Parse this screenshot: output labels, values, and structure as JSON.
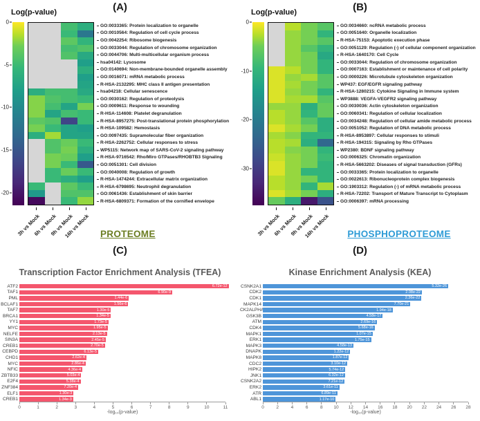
{
  "chart_data": [
    {
      "type": "heatmap",
      "panel_tag": "(A)",
      "title": "Log(p-value)",
      "footer": "PROTEOME",
      "footer_color": "#6b7d22",
      "missing_color": "#d6d6d6",
      "colorbar": {
        "ticks": [
          0,
          -5,
          -10,
          -15,
          -20
        ],
        "vmin": -21.5,
        "vmax": 0
      },
      "columns": [
        "3h vs Mock",
        "6h vs Mock",
        "9h vs Mock",
        "16h vs Mock"
      ],
      "rows": [
        {
          "label": "GO:0033365: Protein localization to organelle",
          "values": [
            null,
            null,
            -6.5,
            -8
          ]
        },
        {
          "label": "GO:0010564: Regulation of cell cycle process",
          "values": [
            null,
            null,
            -7,
            -13
          ]
        },
        {
          "label": "GO:0042254: Ribosome biogenesis",
          "values": [
            null,
            null,
            -5.5,
            -7.5
          ]
        },
        {
          "label": "GO:0033044: Regulation of chromosome organization",
          "values": [
            null,
            null,
            -6.5,
            -6
          ]
        },
        {
          "label": "GO:0044706: Multi-multicellular organism process",
          "values": [
            null,
            null,
            -6,
            -8.5
          ]
        },
        {
          "label": "hsa04142: Lysosome",
          "values": [
            null,
            null,
            null,
            -9.5
          ]
        },
        {
          "label": "GO:0140694: Non-membrane-bounded organelle assembly",
          "values": [
            null,
            null,
            null,
            -8
          ]
        },
        {
          "label": "GO:0016071: mRNA metabolic process",
          "values": [
            null,
            null,
            null,
            -9.5
          ]
        },
        {
          "label": "R-HSA-2132295: MHC class II antigen presentation",
          "values": [
            null,
            null,
            null,
            -9
          ]
        },
        {
          "label": "hsa04218: Cellular senescence",
          "values": [
            -8,
            -6.5,
            -6.5,
            -8.5
          ]
        },
        {
          "label": "GO:0030162: Regulation of proteolysis",
          "values": [
            -4,
            -6,
            -6.5,
            -7
          ]
        },
        {
          "label": "GO:0009611: Response to wounding",
          "values": [
            -4,
            -6.5,
            -9,
            -4.5
          ]
        },
        {
          "label": "R-HSA-114608: Platelet degranulation",
          "values": [
            -4,
            -9,
            -6.5,
            -7
          ]
        },
        {
          "label": "R-HSA-8957275: Post-translational protein phosphorylation",
          "values": [
            -5.5,
            -6,
            -17,
            -7
          ]
        },
        {
          "label": "R-HSA-109582: Hemostasis",
          "values": [
            -4.5,
            -7,
            -9,
            -9.5
          ]
        },
        {
          "label": "GO:0097435: Supramolecular fiber organization",
          "values": [
            -8,
            -3,
            -9,
            -9
          ]
        },
        {
          "label": "R-HSA-2262752: Cellular responses to stress",
          "values": [
            null,
            -6,
            -5,
            -7
          ]
        },
        {
          "label": "WP5115: Network map of SARS-CoV-2 signaling pathway",
          "values": [
            null,
            -6,
            -4.5,
            -8
          ]
        },
        {
          "label": "R-HSA-9716542: Rho/Miro GTPases/RHOBTB3 Signaling",
          "values": [
            null,
            -4.5,
            -5,
            -9.5
          ]
        },
        {
          "label": "GO:0051301: Cell division",
          "values": [
            null,
            -4.5,
            -7,
            -15.5
          ]
        },
        {
          "label": "GO:0040008: Regulation of growth",
          "values": [
            null,
            -7,
            -5,
            -7
          ]
        },
        {
          "label": "R-HSA-1474244: Extracellular matrix organization",
          "values": [
            null,
            -7,
            -8,
            -9.5
          ]
        },
        {
          "label": "R-HSA-6798695: Neutrophil degranulation",
          "values": [
            -7,
            null,
            -5.5,
            -7
          ]
        },
        {
          "label": "GO:0061436: Establishment of skin barrier",
          "values": [
            -10,
            null,
            -6,
            -6
          ]
        },
        {
          "label": "R-HSA-6809371: Formation of the cornified envelope",
          "values": [
            -21,
            null,
            -7,
            -3.5
          ]
        }
      ]
    },
    {
      "type": "heatmap",
      "panel_tag": "(B)",
      "title": "Log(p-value)",
      "footer": "PHOSPHOPROTEOME",
      "footer_color": "#2e9bd6",
      "missing_color": "#d6d6d6",
      "colorbar": {
        "ticks": [
          0,
          -10,
          -20,
          -30
        ],
        "vmin": -37.5,
        "vmax": 0
      },
      "columns": [
        "3h vs Mock",
        "6h vs Mock",
        "9h vs Mock",
        "16h vs Mock"
      ],
      "rows": [
        {
          "label": "GO:0034660: ncRNA metabolic process",
          "values": [
            null,
            -4,
            -8,
            -10
          ]
        },
        {
          "label": "GO:0051640: Organelle localization",
          "values": [
            null,
            -6,
            -8,
            -13
          ]
        },
        {
          "label": "R-HSA-75153: Apoptotic execution phase",
          "values": [
            null,
            -6,
            -8,
            -10
          ]
        },
        {
          "label": "GO:0051129: Regulation (-) of cellular component organization",
          "values": [
            null,
            -6,
            -10,
            -13
          ]
        },
        {
          "label": "R-HSA-1640170: Cell Cycle",
          "values": [
            null,
            -6,
            -8,
            -15
          ]
        },
        {
          "label": "GO:0033044: Regulation of chromosome organization",
          "values": [
            null,
            -6,
            -8,
            -13
          ]
        },
        {
          "label": "GO:0007163: Establishment or maintenance of cell polarity",
          "values": [
            -2,
            -4,
            -8,
            -13
          ]
        },
        {
          "label": "GO:0000226: Microtubule cytoskeleton organization",
          "values": [
            -2,
            -6,
            -5,
            -10
          ]
        },
        {
          "label": "WP437: EGF/EGFR signaling pathway",
          "values": [
            -2,
            -5,
            -8,
            -10
          ]
        },
        {
          "label": "R-HSA-1280215: Cytokine Signaling in Immune system",
          "values": [
            -2,
            -6,
            -8,
            -13
          ]
        },
        {
          "label": "WP3888: VEGFA-VEGFR2 signaling pathway",
          "values": [
            -2,
            -5,
            -5,
            -10
          ]
        },
        {
          "label": "GO:0030036: Actin cytoskeleton organization",
          "values": [
            -6,
            -6,
            -14,
            -9
          ]
        },
        {
          "label": "GO:0060341: Regulation of cellular localization",
          "values": [
            -4,
            -6,
            -13,
            -9
          ]
        },
        {
          "label": "GO:0034248: Regulation of cellular amide metabolic process",
          "values": [
            -4,
            -6,
            -10,
            -14
          ]
        },
        {
          "label": "GO:0051052: Regulation of DNA metabolic process",
          "values": [
            -2,
            -5,
            -8,
            -14
          ]
        },
        {
          "label": "R-HSA-8953897: Cellular responses to stimuli",
          "values": [
            -5,
            -7,
            -13,
            -13
          ]
        },
        {
          "label": "R-HSA-194315: Signaling by Rho GTPases",
          "values": [
            -4,
            -5,
            -14,
            -25
          ]
        },
        {
          "label": "WP2380: BDNF signaling pathway",
          "values": [
            -4,
            -7,
            -8,
            -13
          ]
        },
        {
          "label": "GO:0006325: Chromatin organization",
          "values": [
            -3,
            -6,
            -8,
            -12
          ]
        },
        {
          "label": "R-HSA-5663202: Diseases of signal transduction (GFRs)",
          "values": [
            -2,
            -6,
            -8,
            -13
          ]
        },
        {
          "label": "GO:0033365: Protein localization to organelle",
          "values": [
            -2,
            -6,
            -13,
            -13
          ]
        },
        {
          "label": "GO:0022613: Ribonucleoprotein complex biogenesis",
          "values": [
            -4,
            -6,
            -8,
            -13
          ]
        },
        {
          "label": "GO:1903312: Regulation (-) of mRNA metabolic process",
          "values": [
            -4,
            -6,
            -13,
            -5
          ]
        },
        {
          "label": "R-HSA-72202: Transport of Mature Transcript to Cytoplasm",
          "values": [
            -2,
            -5,
            -8,
            -14
          ]
        },
        {
          "label": "GO:0006397: mRNA processing",
          "values": [
            -9,
            -14,
            -35,
            -28
          ]
        }
      ]
    },
    {
      "type": "bar",
      "panel_tag": "(C)",
      "title": "Transcription Factor Enrichment Analysis (TFEA)",
      "xlabel": "-log₁₀(p-value)",
      "bar_color": "#f4566d",
      "xmax": 11,
      "xtick_step": 1,
      "xticks": [
        0,
        1,
        2,
        3,
        4,
        5,
        6,
        7,
        8,
        9,
        10,
        11
      ],
      "bars": [
        {
          "label": "ATF2",
          "p": "6.72e-12",
          "neg_log10": 11.17
        },
        {
          "label": "TAF1",
          "p": "6.90e-9",
          "neg_log10": 8.16
        },
        {
          "label": "PML",
          "p": "1.44e-6",
          "neg_log10": 5.84
        },
        {
          "label": "BCLAF1",
          "p": "1.56e-6",
          "neg_log10": 5.81
        },
        {
          "label": "TAF7",
          "p": "1.30e-5",
          "neg_log10": 4.89
        },
        {
          "label": "BRCA1",
          "p": "1.34e-5",
          "neg_log10": 4.87
        },
        {
          "label": "YY1",
          "p": "1.73e-5",
          "neg_log10": 4.76
        },
        {
          "label": "MYC",
          "p": "1.95e-5",
          "neg_log10": 4.71
        },
        {
          "label": "NELFE",
          "p": "2.13e-5",
          "neg_log10": 4.67
        },
        {
          "label": "SIN3A",
          "p": "2.45e-5",
          "neg_log10": 4.61
        },
        {
          "label": "CREB1",
          "p": "2.70e-5",
          "neg_log10": 4.57
        },
        {
          "label": "CEBPD",
          "p": "6.13e-5",
          "neg_log10": 4.21
        },
        {
          "label": "CHD1",
          "p": "2.62e-4",
          "neg_log10": 3.58
        },
        {
          "label": "MYC",
          "p": "2.86e-4",
          "neg_log10": 3.54
        },
        {
          "label": "NFIC",
          "p": "4.36e-4",
          "neg_log10": 3.36
        },
        {
          "label": "ZBTB33",
          "p": "5.03e-4",
          "neg_log10": 3.3
        },
        {
          "label": "E2F4",
          "p": "5.38e-4",
          "neg_log10": 3.27
        },
        {
          "label": "ZNF384",
          "p": "7.20e-4",
          "neg_log10": 3.14
        },
        {
          "label": "ELF1",
          "p": "1.30e-3",
          "neg_log10": 2.89
        },
        {
          "label": "CREB1",
          "p": "1.34e-3",
          "neg_log10": 2.87
        }
      ]
    },
    {
      "type": "bar",
      "panel_tag": "(D)",
      "title": "Kinase Enrichment Analysis (KEA)",
      "xlabel": "-log₁₀(p-value)",
      "bar_color": "#4e95d9",
      "xmax": 28,
      "xtick_step": 2,
      "xticks": [
        0,
        2,
        4,
        6,
        8,
        10,
        12,
        14,
        16,
        18,
        20,
        22,
        24,
        26,
        28
      ],
      "bars": [
        {
          "label": "CSNK2A1",
          "p": "5.32e-26",
          "neg_log10": 25.27
        },
        {
          "label": "CDK2",
          "p": "2.08e-22",
          "neg_log10": 21.68
        },
        {
          "label": "CDK1",
          "p": "2.36e-22",
          "neg_log10": 21.63
        },
        {
          "label": "MAPK14",
          "p": "7.70e-21",
          "neg_log10": 20.11
        },
        {
          "label": "CK2ALPHA",
          "p": "1.94e-18",
          "neg_log10": 17.71
        },
        {
          "label": "GSK3B",
          "p": "4.58e-17",
          "neg_log10": 16.34
        },
        {
          "label": "ATM",
          "p": "2.69e-16",
          "neg_log10": 15.57
        },
        {
          "label": "CDK4",
          "p": "5.68e-16",
          "neg_log10": 15.25
        },
        {
          "label": "MAPK1",
          "p": "1.07e-15",
          "neg_log10": 14.97
        },
        {
          "label": "ERK1",
          "p": "1.75e-15",
          "neg_log10": 14.76
        },
        {
          "label": "MAPK3",
          "p": "4.58e-13",
          "neg_log10": 12.34
        },
        {
          "label": "DNAPK",
          "p": "1.22e-12",
          "neg_log10": 11.91
        },
        {
          "label": "MAPK8",
          "p": "1.87e-12",
          "neg_log10": 11.73
        },
        {
          "label": "CDC2",
          "p": "3.10e-12",
          "neg_log10": 11.51
        },
        {
          "label": "HIPK2",
          "p": "5.74e-12",
          "neg_log10": 11.24
        },
        {
          "label": "JNK1",
          "p": "6.32e-12",
          "neg_log10": 11.2
        },
        {
          "label": "CSNK2A2",
          "p": "7.21e-12",
          "neg_log10": 11.14
        },
        {
          "label": "ERK2",
          "p": "3.61e-11",
          "neg_log10": 10.44
        },
        {
          "label": "ATR",
          "p": "6.89e-11",
          "neg_log10": 10.16
        },
        {
          "label": "ABL1",
          "p": "1.17e-10",
          "neg_log10": 9.93
        }
      ]
    }
  ]
}
